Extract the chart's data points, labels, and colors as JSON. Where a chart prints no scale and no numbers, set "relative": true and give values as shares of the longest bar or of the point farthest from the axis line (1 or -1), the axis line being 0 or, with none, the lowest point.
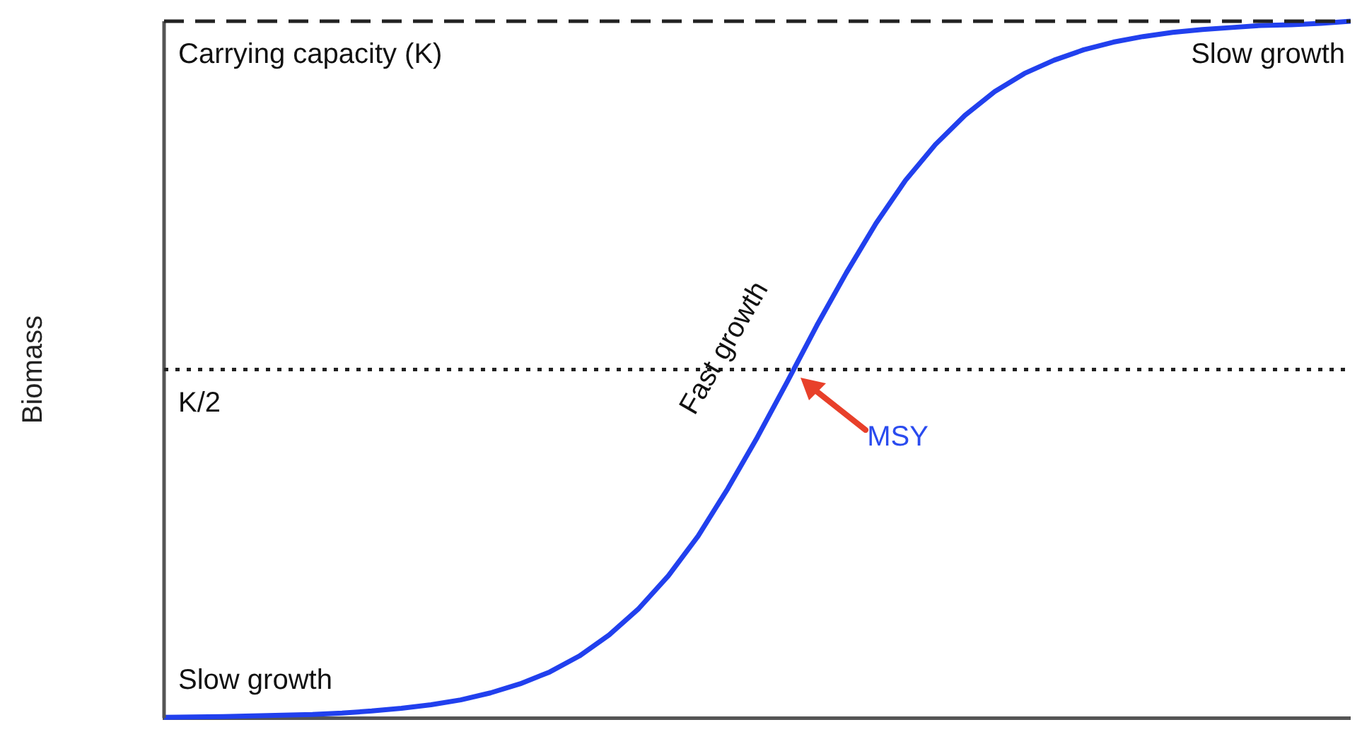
{
  "chart_data": {
    "type": "line",
    "relative": true,
    "ylabel": "Biomass",
    "legend": false,
    "grid": false,
    "marker": "none",
    "line_style": "solid",
    "categories": [
      null,
      null,
      null,
      null,
      null,
      null,
      null,
      null,
      null,
      null,
      null,
      null,
      null,
      null,
      null,
      null,
      null,
      null,
      null,
      null,
      null,
      null,
      null,
      null,
      null,
      null,
      null,
      null,
      null,
      null,
      null,
      null,
      null,
      null,
      null,
      null,
      null,
      null,
      null,
      null,
      null
    ],
    "series": [
      {
        "color": "#2140ee",
        "values": [
          0.001,
          0.0015,
          0.002,
          0.003,
          0.004,
          0.005,
          0.007,
          0.01,
          0.014,
          0.019,
          0.026,
          0.036,
          0.049,
          0.066,
          0.089,
          0.119,
          0.157,
          0.204,
          0.261,
          0.329,
          0.403,
          0.482,
          0.563,
          0.639,
          0.71,
          0.772,
          0.823,
          0.865,
          0.899,
          0.925,
          0.944,
          0.959,
          0.97,
          0.978,
          0.984,
          0.988,
          0.991,
          0.994,
          0.995,
          0.997,
          1
        ]
      }
    ],
    "ref_lines": [
      {
        "axis": "y",
        "value": 1,
        "label": "Carrying capacity (K)",
        "color": "#222222",
        "line_style": "dashed"
      },
      {
        "axis": "y",
        "value": 0.5,
        "label": "K/2",
        "color": "#222222",
        "line_style": "dotted"
      }
    ],
    "annotations": [
      "Slow growth",
      "Slow growth",
      "Fast growth",
      {
        "text": "MSY",
        "y": 0.5
      }
    ]
  }
}
